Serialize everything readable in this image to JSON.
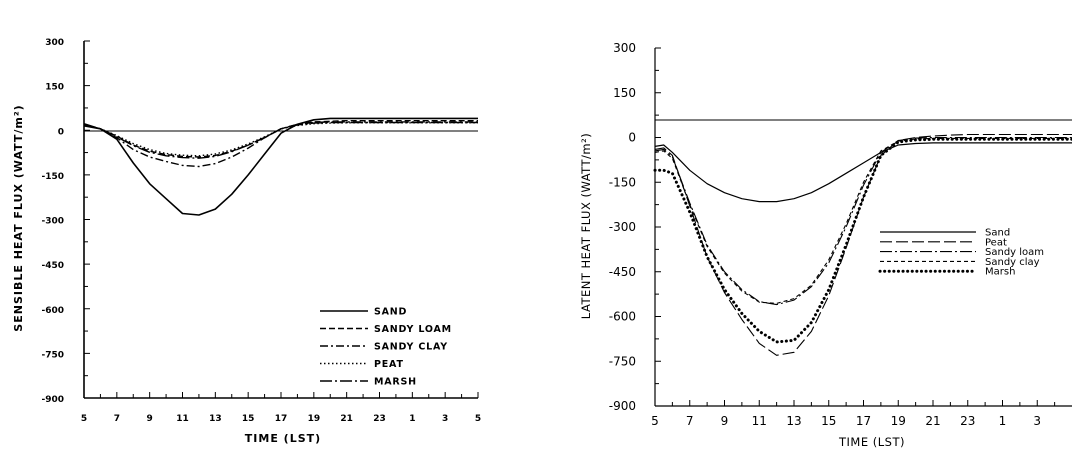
{
  "chart_data": [
    {
      "type": "line",
      "title": "",
      "xlabel": "TIME (LST)",
      "ylabel": "SENSIBLE HEAT FLUX (WATT/m²)",
      "ylim": [
        -900,
        300
      ],
      "yticks": [
        "300",
        "150",
        "0",
        "-150",
        "-300",
        "-450",
        "-600",
        "-750",
        "-900"
      ],
      "xticks": [
        "5",
        "7",
        "9",
        "11",
        "13",
        "15",
        "17",
        "19",
        "21",
        "23",
        "1",
        "3",
        "5"
      ],
      "legend_position": "bottom-right",
      "series": [
        {
          "name": "SAND",
          "style": "solid",
          "x": [
            5,
            6,
            7,
            8,
            9,
            10,
            11,
            12,
            13,
            14,
            15,
            16,
            17,
            18,
            19,
            20,
            21,
            22,
            23,
            24,
            25,
            26,
            27,
            28,
            29
          ],
          "y": [
            15,
            5,
            -30,
            -110,
            -180,
            -230,
            -280,
            -285,
            -265,
            -215,
            -150,
            -80,
            -10,
            20,
            35,
            40,
            40,
            40,
            40,
            40,
            40,
            40,
            40,
            40,
            40
          ]
        },
        {
          "name": "SANDY LOAM",
          "style": "dashed",
          "x": [
            5,
            6,
            7,
            8,
            9,
            10,
            11,
            12,
            13,
            14,
            15,
            16,
            17,
            18,
            19,
            20,
            21,
            22,
            23,
            24,
            25,
            26,
            27,
            28,
            29
          ],
          "y": [
            20,
            5,
            -20,
            -50,
            -70,
            -82,
            -88,
            -90,
            -85,
            -70,
            -50,
            -25,
            5,
            20,
            28,
            30,
            32,
            32,
            32,
            32,
            32,
            32,
            32,
            32,
            32
          ]
        },
        {
          "name": "SANDY CLAY",
          "style": "dashdot",
          "x": [
            5,
            6,
            7,
            8,
            9,
            10,
            11,
            12,
            13,
            14,
            15,
            16,
            17,
            18,
            19,
            20,
            21,
            22,
            23,
            24,
            25,
            26,
            27,
            28,
            29
          ],
          "y": [
            20,
            5,
            -25,
            -65,
            -90,
            -105,
            -118,
            -122,
            -112,
            -90,
            -60,
            -25,
            5,
            20,
            26,
            28,
            28,
            28,
            28,
            28,
            28,
            28,
            28,
            28,
            28
          ]
        },
        {
          "name": "PEAT",
          "style": "dotted",
          "x": [
            5,
            6,
            7,
            8,
            9,
            10,
            11,
            12,
            13,
            14,
            15,
            16,
            17,
            18,
            19,
            20,
            21,
            22,
            23,
            24,
            25,
            26,
            27,
            28,
            29
          ],
          "y": [
            18,
            5,
            -18,
            -45,
            -65,
            -78,
            -84,
            -86,
            -80,
            -66,
            -46,
            -22,
            5,
            16,
            22,
            24,
            25,
            25,
            25,
            25,
            25,
            25,
            25,
            25,
            25
          ]
        },
        {
          "name": "MARSH",
          "style": "dashdotlong",
          "x": [
            5,
            6,
            7,
            8,
            9,
            10,
            11,
            12,
            13,
            14,
            15,
            16,
            17,
            18,
            19,
            20,
            21,
            22,
            23,
            24,
            25,
            26,
            27,
            28,
            29
          ],
          "y": [
            22,
            5,
            -22,
            -52,
            -74,
            -86,
            -92,
            -94,
            -88,
            -72,
            -50,
            -24,
            5,
            18,
            24,
            26,
            26,
            26,
            26,
            26,
            26,
            26,
            26,
            26,
            26
          ]
        }
      ]
    },
    {
      "type": "line",
      "title": "",
      "xlabel": "TIME (LST)",
      "ylabel": "LATENT HEAT FLUX (WATT/m²)",
      "ylim": [
        -900,
        300
      ],
      "yticks": [
        "300",
        "150",
        "0",
        "-150",
        "-300",
        "-450",
        "-600",
        "-750",
        "-900"
      ],
      "xticks": [
        "5",
        "7",
        "9",
        "11",
        "13",
        "15",
        "17",
        "19",
        "21",
        "23",
        "1",
        "3"
      ],
      "legend_position": "middle-right",
      "series": [
        {
          "name": "Sand",
          "style": "solid",
          "x": [
            5,
            5.5,
            6,
            7,
            8,
            9,
            10,
            11,
            12,
            13,
            14,
            15,
            16,
            17,
            18,
            19,
            20,
            21,
            22,
            23,
            24,
            25,
            26,
            27,
            28,
            29
          ],
          "y": [
            -30,
            -25,
            -50,
            -110,
            -155,
            -185,
            -205,
            -215,
            -215,
            -205,
            -185,
            -155,
            -120,
            -85,
            -50,
            -25,
            -20,
            -18,
            -18,
            -18,
            -18,
            -18,
            -18,
            -18,
            -18,
            -18
          ]
        },
        {
          "name": "Peat",
          "style": "longdash",
          "x": [
            5,
            5.5,
            6,
            7,
            8,
            9,
            10,
            11,
            12,
            13,
            14,
            15,
            16,
            17,
            18,
            19,
            20,
            21,
            22,
            23,
            24,
            25,
            26,
            27,
            28,
            29
          ],
          "y": [
            -40,
            -35,
            -60,
            -230,
            -400,
            -520,
            -610,
            -690,
            -730,
            -720,
            -650,
            -530,
            -370,
            -200,
            -60,
            -10,
            0,
            5,
            8,
            10,
            10,
            10,
            10,
            10,
            10,
            10
          ]
        },
        {
          "name": "Sandy loam",
          "style": "dashdotlong",
          "x": [
            5,
            5.5,
            6,
            7,
            8,
            9,
            10,
            11,
            12,
            13,
            14,
            15,
            16,
            17,
            18,
            19,
            20,
            21,
            22,
            23,
            24,
            25,
            26,
            27,
            28,
            29
          ],
          "y": [
            -45,
            -40,
            -65,
            -220,
            -360,
            -450,
            -510,
            -550,
            -560,
            -545,
            -500,
            -420,
            -300,
            -160,
            -50,
            -10,
            -2,
            0,
            0,
            0,
            0,
            0,
            0,
            0,
            0,
            0
          ]
        },
        {
          "name": "Sandy clay",
          "style": "shortdash",
          "x": [
            5,
            5.5,
            6,
            7,
            8,
            9,
            10,
            11,
            12,
            13,
            14,
            15,
            16,
            17,
            18,
            19,
            20,
            21,
            22,
            23,
            24,
            25,
            26,
            27,
            28,
            29
          ],
          "y": [
            -50,
            -45,
            -70,
            -225,
            -365,
            -455,
            -515,
            -552,
            -556,
            -540,
            -495,
            -410,
            -290,
            -150,
            -45,
            -12,
            -5,
            -3,
            -3,
            -3,
            -3,
            -3,
            -3,
            -3,
            -3,
            -3
          ]
        },
        {
          "name": "Marsh",
          "style": "bigdot",
          "x": [
            5,
            5.5,
            6,
            7,
            8,
            9,
            10,
            11,
            12,
            13,
            14,
            15,
            16,
            17,
            18,
            19,
            20,
            21,
            22,
            23,
            24,
            25,
            26,
            27,
            28,
            29
          ],
          "y": [
            -110,
            -110,
            -120,
            -250,
            -400,
            -510,
            -590,
            -650,
            -685,
            -680,
            -620,
            -510,
            -360,
            -200,
            -60,
            -15,
            -8,
            -6,
            -6,
            -6,
            -6,
            -6,
            -6,
            -6,
            -6,
            -6
          ]
        }
      ]
    }
  ]
}
